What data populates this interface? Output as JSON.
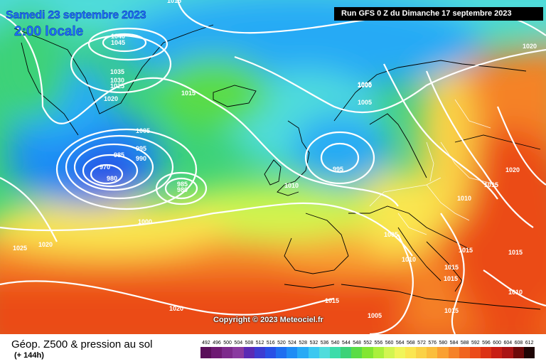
{
  "header": {
    "date": "Samedi 23 septembre 2023",
    "time": "2:00 locale",
    "run": "Run GFS 0 Z du Dimanche 17 septembre 2023"
  },
  "copyright": "Copyright © 2023 Meteociel.fr",
  "legend": {
    "title": "Géop. Z500 & pression au sol",
    "subtitle": "(+ 144h)",
    "scale": [
      {
        "v": "492",
        "c": "#5a0f5a"
      },
      {
        "v": "496",
        "c": "#6e1a73"
      },
      {
        "v": "500",
        "c": "#7d2a8c"
      },
      {
        "v": "504",
        "c": "#8a3aa0"
      },
      {
        "v": "508",
        "c": "#5a2ab4"
      },
      {
        "v": "512",
        "c": "#3c3cd2"
      },
      {
        "v": "516",
        "c": "#2850e6"
      },
      {
        "v": "520",
        "c": "#1e6ef0"
      },
      {
        "v": "524",
        "c": "#1e8cf5"
      },
      {
        "v": "528",
        "c": "#28aaf5"
      },
      {
        "v": "532",
        "c": "#3cc8f0"
      },
      {
        "v": "536",
        "c": "#50dcdc"
      },
      {
        "v": "540",
        "c": "#3cdcaa"
      },
      {
        "v": "544",
        "c": "#3cd278"
      },
      {
        "v": "548",
        "c": "#5adc46"
      },
      {
        "v": "552",
        "c": "#82e632"
      },
      {
        "v": "556",
        "c": "#aaf03c"
      },
      {
        "v": "560",
        "c": "#d2f550"
      },
      {
        "v": "564",
        "c": "#f0f55a"
      },
      {
        "v": "568",
        "c": "#fae650"
      },
      {
        "v": "572",
        "c": "#fad246"
      },
      {
        "v": "576",
        "c": "#fabe3c"
      },
      {
        "v": "580",
        "c": "#faa032"
      },
      {
        "v": "584",
        "c": "#f58228"
      },
      {
        "v": "588",
        "c": "#f0641e"
      },
      {
        "v": "592",
        "c": "#eb4b19"
      },
      {
        "v": "596",
        "c": "#dc3214"
      },
      {
        "v": "600",
        "c": "#c81e14"
      },
      {
        "v": "604",
        "c": "#aa1414"
      },
      {
        "v": "608",
        "c": "#6e0a0a"
      },
      {
        "v": "612",
        "c": "#1e0505"
      }
    ]
  },
  "isobars": [
    "1015",
    "1040",
    "1045",
    "1035",
    "1030",
    "1025",
    "1020",
    "1015",
    "1005",
    "1000",
    "1005",
    "995",
    "990",
    "985",
    "970",
    "980",
    "985",
    "980",
    "1005",
    "1000",
    "995",
    "1010",
    "1020",
    "1025",
    "1020",
    "1005",
    "1010",
    "1010",
    "1015",
    "1020",
    "1015",
    "1015",
    "1015",
    "1010",
    "1015",
    "1020",
    "1005",
    "1015",
    "1015"
  ],
  "colors": {
    "background_ocean_cold": "#1e8cf5",
    "warm": "#f0641e",
    "isobar": "#ffffff"
  }
}
